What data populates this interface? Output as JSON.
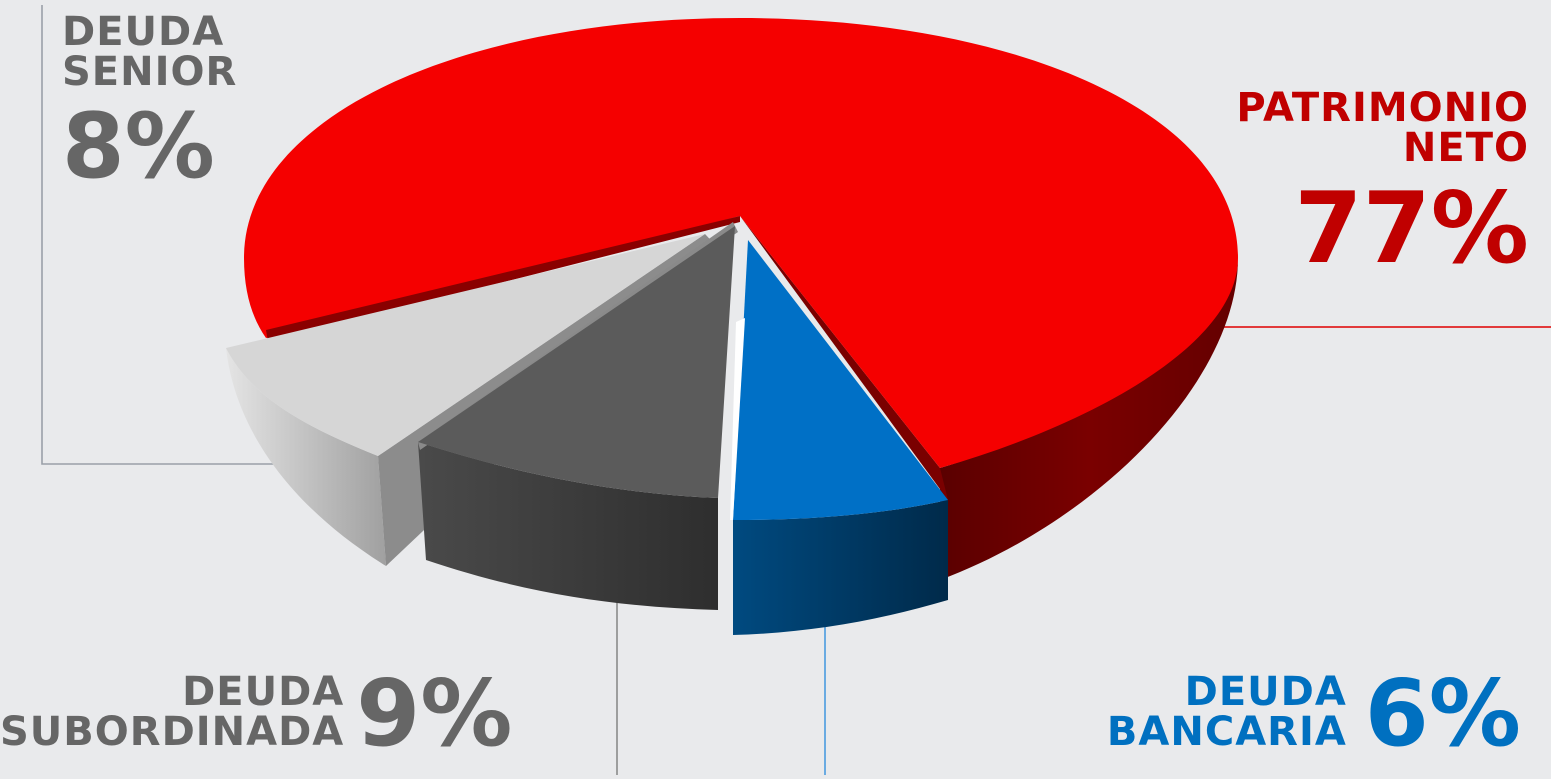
{
  "chart_data": {
    "type": "pie",
    "slices": [
      {
        "label_line1": "PATRIMONIO",
        "label_line2": "NETO",
        "value": 77,
        "value_text": "77%",
        "color": "#ff0000",
        "side_color": "#7a0000"
      },
      {
        "label_line1": "DEUDA",
        "label_line2": "BANCARIA",
        "value": 6,
        "value_text": "6%",
        "color": "#0070c0",
        "side_color": "#003a66"
      },
      {
        "label_line1": "DEUDA",
        "label_line2": "SUBORDINADA",
        "value": 9,
        "value_text": "9%",
        "color": "#595959",
        "side_color": "#333333"
      },
      {
        "label_line1": "DEUDA",
        "label_line2": "SENIOR",
        "value": 8,
        "value_text": "8%",
        "color": "#d9d9d9",
        "side_color": "#a6a6a6"
      }
    ],
    "style": "3d-exploded-pie",
    "label_colors": {
      "patrimonio": "#c00000",
      "bancaria": "#0070c0",
      "subordinada": "#666666",
      "senior": "#666666"
    }
  }
}
